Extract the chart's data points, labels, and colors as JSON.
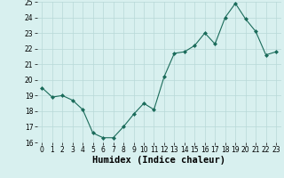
{
  "x": [
    0,
    1,
    2,
    3,
    4,
    5,
    6,
    7,
    8,
    9,
    10,
    11,
    12,
    13,
    14,
    15,
    16,
    17,
    18,
    19,
    20,
    21,
    22,
    23
  ],
  "y": [
    19.5,
    18.9,
    19.0,
    18.7,
    18.1,
    16.6,
    16.3,
    16.3,
    17.0,
    17.8,
    18.5,
    18.1,
    20.2,
    21.7,
    21.8,
    22.2,
    23.0,
    22.3,
    24.0,
    24.9,
    23.9,
    23.1,
    21.6,
    21.8
  ],
  "line_color": "#1a6b5a",
  "marker": "D",
  "marker_size": 2.0,
  "bg_color": "#d8f0ef",
  "grid_color": "#b8d8d8",
  "xlabel": "Humidex (Indice chaleur)",
  "ylim": [
    16,
    25
  ],
  "xlim": [
    -0.5,
    23.5
  ],
  "yticks": [
    16,
    17,
    18,
    19,
    20,
    21,
    22,
    23,
    24,
    25
  ],
  "xticks": [
    0,
    1,
    2,
    3,
    4,
    5,
    6,
    7,
    8,
    9,
    10,
    11,
    12,
    13,
    14,
    15,
    16,
    17,
    18,
    19,
    20,
    21,
    22,
    23
  ],
  "tick_fontsize": 5.5,
  "xlabel_fontsize": 7.5
}
